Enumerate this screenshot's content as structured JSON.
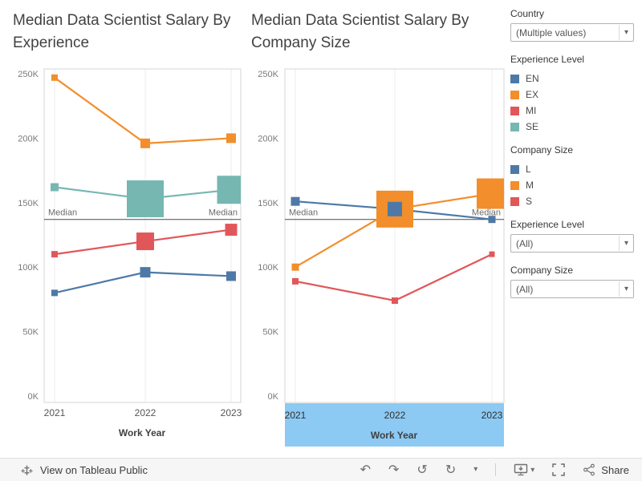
{
  "chart_data": [
    {
      "type": "line",
      "title": "Median Data Scientist Salary By Experience",
      "x": [
        "2021",
        "2022",
        "2023"
      ],
      "xlabel": "Work Year",
      "ylabel": "",
      "ylim": [
        0,
        250000
      ],
      "yticks": [
        "0K",
        "50K",
        "100K",
        "150K",
        "200K",
        "250K"
      ],
      "grid": "vertical-light",
      "legend_position": "right",
      "reference_line": {
        "label": "Median",
        "value": 137000
      },
      "series": [
        {
          "name": "EN",
          "color": "#4e79a7",
          "values": [
            80000,
            96000,
            93000
          ],
          "marker_sizes": [
            8,
            13,
            12
          ]
        },
        {
          "name": "EX",
          "color": "#f28e2b",
          "values": [
            247000,
            196000,
            200000
          ],
          "marker_sizes": [
            8,
            12,
            12
          ]
        },
        {
          "name": "MI",
          "color": "#e15759",
          "values": [
            110000,
            120000,
            129000
          ],
          "marker_sizes": [
            8,
            22,
            15
          ]
        },
        {
          "name": "SE",
          "color": "#76b7b2",
          "values": [
            162000,
            153000,
            160000
          ],
          "marker_sizes": [
            10,
            46,
            35
          ]
        }
      ]
    },
    {
      "type": "line",
      "title": "Median Data Scientist Salary By Company Size",
      "x": [
        "2021",
        "2022",
        "2023"
      ],
      "xlabel": "Work Year",
      "ylabel": "",
      "ylim": [
        0,
        250000
      ],
      "yticks": [
        "0K",
        "50K",
        "100K",
        "150K",
        "200K",
        "250K"
      ],
      "grid": "vertical-light",
      "legend_position": "right",
      "x_axis_selected": true,
      "reference_line": {
        "label": "Median",
        "value": 137000
      },
      "series": [
        {
          "name": "L",
          "color": "#4e79a7",
          "values": [
            151000,
            145000,
            137000
          ],
          "marker_sizes": [
            11,
            18,
            9
          ]
        },
        {
          "name": "M",
          "color": "#f28e2b",
          "values": [
            100000,
            145000,
            157000
          ],
          "marker_sizes": [
            9,
            46,
            38
          ]
        },
        {
          "name": "S",
          "color": "#e15759",
          "values": [
            89000,
            74000,
            110000
          ],
          "marker_sizes": [
            8,
            8,
            7
          ]
        }
      ]
    }
  ],
  "sidebar": {
    "country_label": "Country",
    "country_value": "(Multiple values)",
    "experience_legend_title": "Experience Level",
    "experience_legend": [
      {
        "label": "EN",
        "color": "#4e79a7"
      },
      {
        "label": "EX",
        "color": "#f28e2b"
      },
      {
        "label": "MI",
        "color": "#e15759"
      },
      {
        "label": "SE",
        "color": "#76b7b2"
      }
    ],
    "company_legend_title": "Company Size",
    "company_legend": [
      {
        "label": "L",
        "color": "#4e79a7"
      },
      {
        "label": "M",
        "color": "#f28e2b"
      },
      {
        "label": "S",
        "color": "#e15759"
      }
    ],
    "experience_filter_label": "Experience Level",
    "experience_filter_value": "(All)",
    "company_filter_label": "Company Size",
    "company_filter_value": "(All)"
  },
  "toolbar": {
    "view_label": "View on Tableau Public",
    "share_label": "Share",
    "icons": {
      "undo": "↶",
      "redo": "↷",
      "reset": "↺",
      "refresh": "↻",
      "caret": "▾",
      "download_caret": "▾"
    }
  },
  "colors": {
    "axis_highlight": "#8cc9f3",
    "median_line": "#4b4b4b",
    "grid_line": "#ececec",
    "plot_border": "#d6d6d6"
  }
}
